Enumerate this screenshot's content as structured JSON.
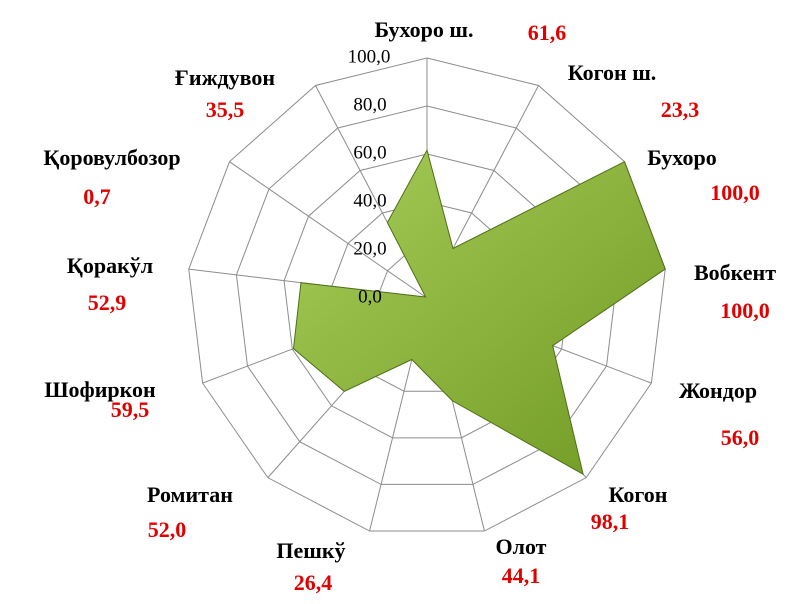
{
  "chart_data": {
    "type": "radar",
    "categories": [
      "Бухоро ш.",
      "Когон ш.",
      "Бухоро",
      "Вобкент",
      "Жондор",
      "Когон",
      "Олот",
      "Пешкў",
      "Ромитан",
      "Шофиркон",
      "Қоракўл",
      "Қоровулбозор",
      "Ғиждувон"
    ],
    "values": [
      61.6,
      23.3,
      100.0,
      100.0,
      56.0,
      98.1,
      44.1,
      26.4,
      52.0,
      59.5,
      52.9,
      0.7,
      35.5
    ],
    "value_labels": [
      "61,6",
      "23,3",
      "100,0",
      "100,0",
      "56,0",
      "98,1",
      "44,1",
      "26,4",
      "52,0",
      "59,5",
      "52,9",
      "0,7",
      "35,5"
    ],
    "color": "#8db63c",
    "ylim": [
      0,
      100
    ],
    "yticks": [
      {
        "value": 0,
        "label": "0,0"
      },
      {
        "value": 20,
        "label": "20,0"
      },
      {
        "value": 40,
        "label": "40,0"
      },
      {
        "value": 60,
        "label": "60,0"
      },
      {
        "value": 80,
        "label": "80,0"
      },
      {
        "value": 100,
        "label": "100,0"
      }
    ],
    "grid": true
  }
}
